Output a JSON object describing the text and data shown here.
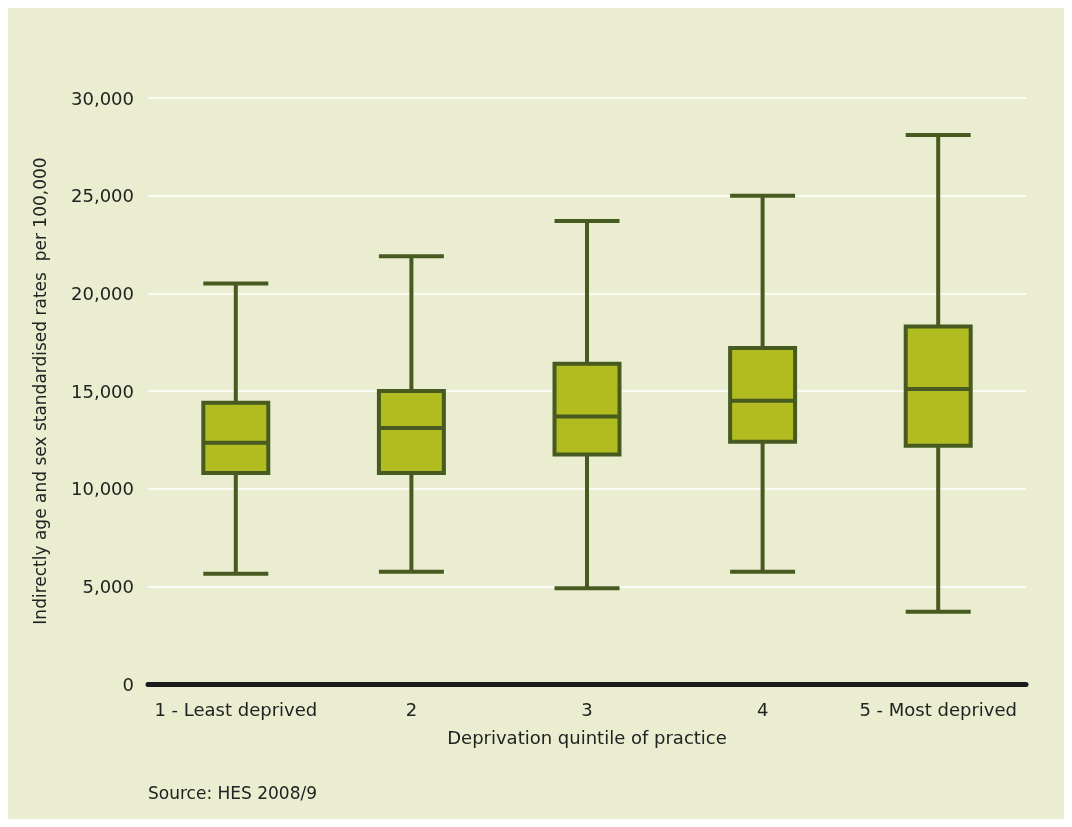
{
  "chart_data": {
    "type": "box",
    "xlabel": "Deprivation quintile of practice",
    "ylabel": "Indirectly age and sex standardised rates  per 100,000",
    "categories": [
      "1 - Least deprived",
      "2",
      "3",
      "4",
      "5 - Most deprived"
    ],
    "series": [
      {
        "color": "#b0bc1f",
        "boxes": [
          {
            "low": 5650,
            "q1": 10800,
            "median": 12350,
            "q3": 14400,
            "high": 20500
          },
          {
            "low": 5750,
            "q1": 10800,
            "median": 13100,
            "q3": 15000,
            "high": 21900
          },
          {
            "low": 4900,
            "q1": 11750,
            "median": 13700,
            "q3": 16400,
            "high": 23700
          },
          {
            "low": 5750,
            "q1": 12400,
            "median": 14500,
            "q3": 17200,
            "high": 25000
          },
          {
            "low": 3700,
            "q1": 12200,
            "median": 15100,
            "q3": 18300,
            "high": 28100
          }
        ]
      }
    ],
    "ylim": [
      0,
      30000
    ],
    "yticks": [
      0,
      {
        "value": 5000,
        "label": "5,000"
      },
      {
        "value": 10000,
        "label": "10,000"
      },
      {
        "value": 15000,
        "label": "15,000"
      },
      {
        "value": 20000,
        "label": "20,000"
      },
      {
        "value": 25000,
        "label": "25,000"
      },
      {
        "value": 30000,
        "label": "30,000"
      }
    ],
    "grid": "y",
    "annotations": [
      "Source: HES 2008/9"
    ]
  }
}
